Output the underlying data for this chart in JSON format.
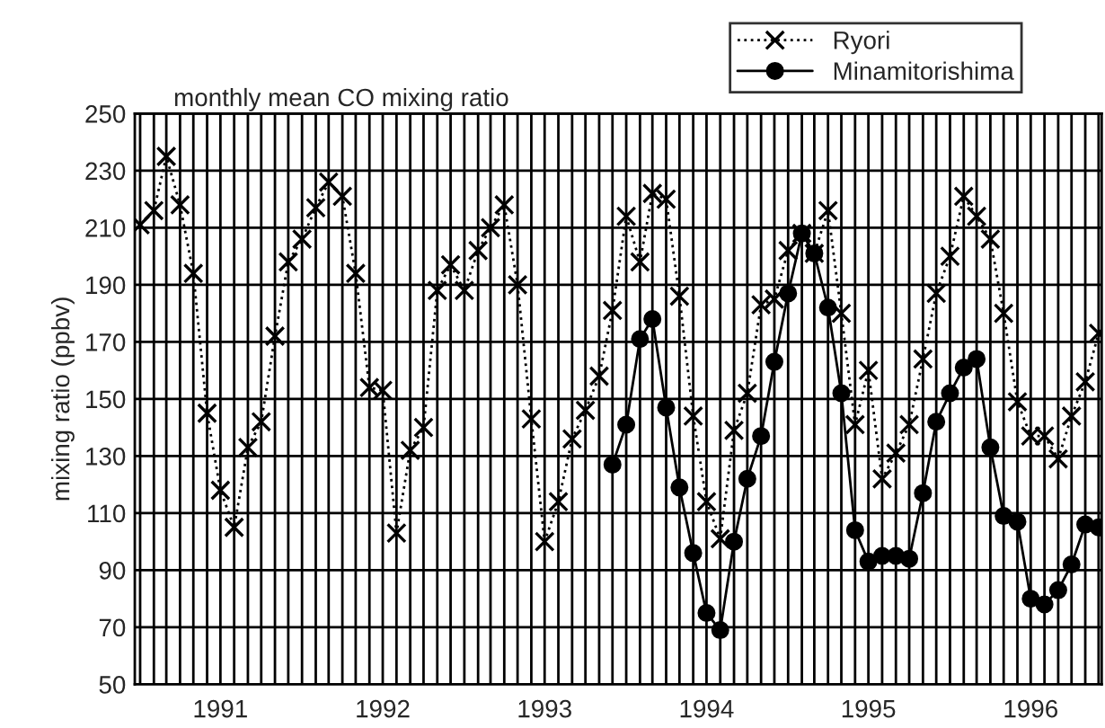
{
  "chart_data": {
    "type": "line",
    "title": "monthly mean CO mixing ratio",
    "ylabel": "mixing ratio (ppbv)",
    "x": [
      "1991-01",
      "1991-02",
      "1991-03",
      "1991-04",
      "1991-05",
      "1991-06",
      "1991-07",
      "1991-08",
      "1991-09",
      "1991-10",
      "1991-11",
      "1991-12",
      "1992-01",
      "1992-02",
      "1992-03",
      "1992-04",
      "1992-05",
      "1992-06",
      "1992-07",
      "1992-08",
      "1992-09",
      "1992-10",
      "1992-11",
      "1992-12",
      "1993-01",
      "1993-02",
      "1993-03",
      "1993-04",
      "1993-05",
      "1993-06",
      "1993-07",
      "1993-08",
      "1993-09",
      "1993-10",
      "1993-11",
      "1993-12",
      "1994-01",
      "1994-02",
      "1994-03",
      "1994-04",
      "1994-05",
      "1994-06",
      "1994-07",
      "1994-08",
      "1994-09",
      "1994-10",
      "1994-11",
      "1994-12",
      "1995-01",
      "1995-02",
      "1995-03",
      "1995-04",
      "1995-05",
      "1995-06",
      "1995-07",
      "1995-08",
      "1995-09",
      "1995-10",
      "1995-11",
      "1995-12",
      "1996-01",
      "1996-02",
      "1996-03",
      "1996-04",
      "1996-05",
      "1996-06",
      "1996-07",
      "1996-08",
      "1996-09",
      "1996-10",
      "1996-11",
      "1996-12"
    ],
    "series": [
      {
        "name": "Ryori",
        "color": "#000000",
        "marker": "cross",
        "line_style": "dotted",
        "values": [
          211,
          216,
          235,
          218,
          194,
          145,
          118,
          105,
          133,
          142,
          172,
          198,
          206,
          217,
          226,
          221,
          194,
          154,
          153,
          103,
          132,
          140,
          188,
          197,
          188,
          202,
          210,
          218,
          190,
          143,
          100,
          114,
          136,
          146,
          158,
          181,
          214,
          198,
          222,
          220,
          186,
          144,
          114,
          101,
          139,
          152,
          183,
          185,
          202,
          208,
          201,
          216,
          180,
          141,
          160,
          122,
          131,
          141,
          164,
          187,
          200,
          221,
          214,
          206,
          180,
          149,
          137,
          137,
          129,
          144,
          156,
          173
        ]
      },
      {
        "name": "Minamitorishima",
        "color": "#000000",
        "marker": "circle",
        "line_style": "solid",
        "values": [
          null,
          null,
          null,
          null,
          null,
          null,
          null,
          null,
          null,
          null,
          null,
          null,
          null,
          null,
          null,
          null,
          null,
          null,
          null,
          null,
          null,
          null,
          null,
          null,
          null,
          null,
          null,
          null,
          null,
          null,
          null,
          null,
          null,
          null,
          null,
          127,
          141,
          171,
          178,
          147,
          119,
          96,
          75,
          69,
          100,
          122,
          137,
          163,
          187,
          208,
          201,
          182,
          152,
          104,
          93,
          95,
          95,
          94,
          117,
          142,
          152,
          161,
          164,
          133,
          109,
          107,
          80,
          78,
          83,
          92,
          106,
          105
        ]
      }
    ],
    "xlim": [
      "1990-12-20",
      "1996-12-08"
    ],
    "xticks": [
      {
        "value": "1991-01",
        "label": null
      },
      {
        "value": "1991-02",
        "label": null
      },
      {
        "value": "1991-03",
        "label": null
      },
      {
        "value": "1991-04",
        "label": null
      },
      {
        "value": "1991-05",
        "label": null
      },
      {
        "value": "1991-06",
        "label": null
      },
      {
        "value": "1991-07",
        "label": "1991"
      },
      {
        "value": "1991-08",
        "label": null
      },
      {
        "value": "1991-09",
        "label": null
      },
      {
        "value": "1991-10",
        "label": null
      },
      {
        "value": "1991-11",
        "label": null
      },
      {
        "value": "1991-12",
        "label": null
      },
      {
        "value": "1992-01",
        "label": null
      },
      {
        "value": "1992-02",
        "label": null
      },
      {
        "value": "1992-03",
        "label": null
      },
      {
        "value": "1992-04",
        "label": null
      },
      {
        "value": "1992-05",
        "label": null
      },
      {
        "value": "1992-06",
        "label": null
      },
      {
        "value": "1992-07",
        "label": "1992"
      },
      {
        "value": "1992-08",
        "label": null
      },
      {
        "value": "1992-09",
        "label": null
      },
      {
        "value": "1992-10",
        "label": null
      },
      {
        "value": "1992-11",
        "label": null
      },
      {
        "value": "1992-12",
        "label": null
      },
      {
        "value": "1993-01",
        "label": null
      },
      {
        "value": "1993-02",
        "label": null
      },
      {
        "value": "1993-03",
        "label": null
      },
      {
        "value": "1993-04",
        "label": null
      },
      {
        "value": "1993-05",
        "label": null
      },
      {
        "value": "1993-06",
        "label": null
      },
      {
        "value": "1993-07",
        "label": "1993"
      },
      {
        "value": "1993-08",
        "label": null
      },
      {
        "value": "1993-09",
        "label": null
      },
      {
        "value": "1993-10",
        "label": null
      },
      {
        "value": "1993-11",
        "label": null
      },
      {
        "value": "1993-12",
        "label": null
      },
      {
        "value": "1994-01",
        "label": null
      },
      {
        "value": "1994-02",
        "label": null
      },
      {
        "value": "1994-03",
        "label": null
      },
      {
        "value": "1994-04",
        "label": null
      },
      {
        "value": "1994-05",
        "label": null
      },
      {
        "value": "1994-06",
        "label": null
      },
      {
        "value": "1994-07",
        "label": "1994"
      },
      {
        "value": "1994-08",
        "label": null
      },
      {
        "value": "1994-09",
        "label": null
      },
      {
        "value": "1994-10",
        "label": null
      },
      {
        "value": "1994-11",
        "label": null
      },
      {
        "value": "1994-12",
        "label": null
      },
      {
        "value": "1995-01",
        "label": null
      },
      {
        "value": "1995-02",
        "label": null
      },
      {
        "value": "1995-03",
        "label": null
      },
      {
        "value": "1995-04",
        "label": null
      },
      {
        "value": "1995-05",
        "label": null
      },
      {
        "value": "1995-06",
        "label": null
      },
      {
        "value": "1995-07",
        "label": "1995"
      },
      {
        "value": "1995-08",
        "label": null
      },
      {
        "value": "1995-09",
        "label": null
      },
      {
        "value": "1995-10",
        "label": null
      },
      {
        "value": "1995-11",
        "label": null
      },
      {
        "value": "1995-12",
        "label": null
      },
      {
        "value": "1996-01",
        "label": null
      },
      {
        "value": "1996-02",
        "label": null
      },
      {
        "value": "1996-03",
        "label": null
      },
      {
        "value": "1996-04",
        "label": null
      },
      {
        "value": "1996-05",
        "label": null
      },
      {
        "value": "1996-06",
        "label": null
      },
      {
        "value": "1996-07",
        "label": "1996"
      },
      {
        "value": "1996-08",
        "label": null
      },
      {
        "value": "1996-09",
        "label": null
      },
      {
        "value": "1996-10",
        "label": null
      },
      {
        "value": "1996-11",
        "label": null
      },
      {
        "value": "1996-12",
        "label": null
      }
    ],
    "ylim": [
      50,
      250
    ],
    "yticks": [
      50,
      70,
      90,
      110,
      130,
      150,
      170,
      190,
      210,
      230,
      250
    ],
    "grid": true,
    "legend": "top right"
  }
}
